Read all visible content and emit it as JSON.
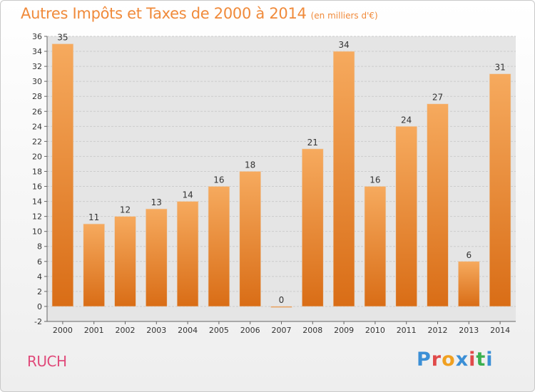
{
  "title": "Autres Impôts et Taxes de 2000 à 2014",
  "subtitle": "(en milliers d'€)",
  "commune": "RUCH",
  "logo_text": "Proxiti",
  "logo_colors": [
    "#3b8fd6",
    "#e04a4a",
    "#f0a020",
    "#3b8fd6",
    "#e04a4a",
    "#3bb050",
    "#3b8fd6"
  ],
  "colors": {
    "title": "#f08a3a",
    "commune": "#e04a7a",
    "bar_light": "#f6aa5e",
    "bar_dark": "#d96d16",
    "grid": "#cccccc",
    "plot_bg": "#e5e5e5"
  },
  "chart_data": {
    "type": "bar",
    "categories": [
      "2000",
      "2001",
      "2002",
      "2003",
      "2004",
      "2005",
      "2006",
      "2007",
      "2008",
      "2009",
      "2010",
      "2011",
      "2012",
      "2013",
      "2014"
    ],
    "values": [
      35,
      11,
      12,
      13,
      14,
      16,
      18,
      0,
      21,
      34,
      16,
      24,
      27,
      6,
      31
    ],
    "ylim": [
      -2,
      36
    ],
    "yticks": [
      -2,
      0,
      2,
      4,
      6,
      8,
      10,
      12,
      14,
      16,
      18,
      20,
      22,
      24,
      26,
      28,
      30,
      32,
      34,
      36
    ],
    "grid": true,
    "title": "Autres Impôts et Taxes de 2000 à 2014",
    "xlabel": "",
    "ylabel": ""
  }
}
